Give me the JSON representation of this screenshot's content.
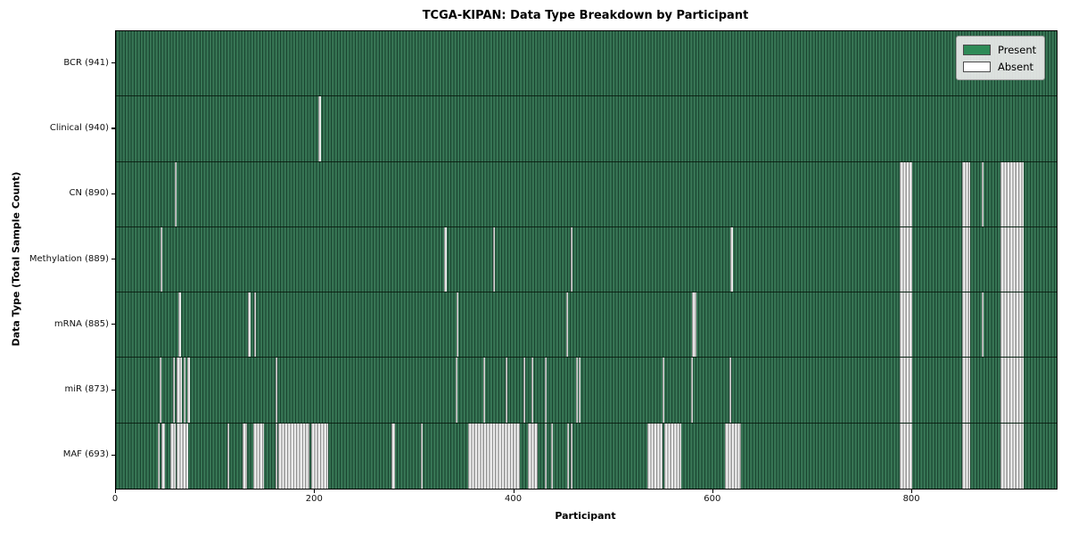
{
  "title": "TCGA-KIPAN: Data Type Breakdown by Participant",
  "chart_data": {
    "type": "heatmap",
    "title": "TCGA-KIPAN: Data Type Breakdown by Participant",
    "xlabel": "Participant",
    "ylabel": "Data Type (Total Sample Count)",
    "x_ticks": [
      0,
      200,
      400,
      600,
      800
    ],
    "x_max": 945,
    "grid": false,
    "legend_position": "upper right",
    "legend": [
      {
        "label": "Present",
        "color": "#2e8b57"
      },
      {
        "label": "Absent",
        "color": "#ffffff"
      }
    ],
    "present_color": "#2e8b57",
    "absent_color": "#ffffff",
    "rows": [
      {
        "label": "BCR (941)",
        "data_type": "BCR",
        "total_samples": 941,
        "absent_ranges": []
      },
      {
        "label": "Clinical (940)",
        "data_type": "Clinical",
        "total_samples": 940,
        "absent_ranges": [
          [
            203,
            206
          ]
        ]
      },
      {
        "label": "CN (890)",
        "data_type": "CN",
        "total_samples": 890,
        "absent_ranges": [
          [
            59,
            61
          ],
          [
            787,
            800
          ],
          [
            850,
            858
          ],
          [
            870,
            872
          ],
          [
            889,
            912
          ]
        ]
      },
      {
        "label": "Methylation (889)",
        "data_type": "Methylation",
        "total_samples": 889,
        "absent_ranges": [
          [
            45,
            47
          ],
          [
            330,
            332
          ],
          [
            379,
            381
          ],
          [
            457,
            459
          ],
          [
            617,
            620
          ],
          [
            787,
            800
          ],
          [
            850,
            858
          ],
          [
            889,
            912
          ]
        ]
      },
      {
        "label": "mRNA (885)",
        "data_type": "mRNA",
        "total_samples": 885,
        "absent_ranges": [
          [
            63,
            65
          ],
          [
            133,
            135
          ],
          [
            139,
            141
          ],
          [
            342,
            344
          ],
          [
            452,
            454
          ],
          [
            579,
            583
          ],
          [
            787,
            800
          ],
          [
            850,
            858
          ],
          [
            870,
            872
          ],
          [
            889,
            912
          ]
        ]
      },
      {
        "label": "miR (873)",
        "data_type": "miR",
        "total_samples": 873,
        "absent_ranges": [
          [
            44,
            46
          ],
          [
            57,
            59
          ],
          [
            61,
            66
          ],
          [
            68,
            70
          ],
          [
            72,
            74
          ],
          [
            160,
            162
          ],
          [
            341,
            343
          ],
          [
            369,
            371
          ],
          [
            391,
            393
          ],
          [
            409,
            411
          ],
          [
            417,
            419
          ],
          [
            431,
            433
          ],
          [
            462,
            464
          ],
          [
            465,
            467
          ],
          [
            549,
            551
          ],
          [
            578,
            580
          ],
          [
            616,
            618
          ],
          [
            787,
            800
          ],
          [
            850,
            858
          ],
          [
            889,
            912
          ]
        ]
      },
      {
        "label": "MAF (693)",
        "data_type": "MAF",
        "total_samples": 693,
        "absent_ranges": [
          [
            42,
            44
          ],
          [
            46,
            49
          ],
          [
            55,
            60
          ],
          [
            61,
            73
          ],
          [
            112,
            114
          ],
          [
            127,
            132
          ],
          [
            138,
            149
          ],
          [
            160,
            162
          ],
          [
            163,
            194
          ],
          [
            196,
            213
          ],
          [
            277,
            280
          ],
          [
            306,
            308
          ],
          [
            354,
            406
          ],
          [
            414,
            424
          ],
          [
            431,
            433
          ],
          [
            437,
            439
          ],
          [
            453,
            455
          ],
          [
            457,
            459
          ],
          [
            534,
            549
          ],
          [
            551,
            568
          ],
          [
            612,
            628
          ],
          [
            787,
            800
          ],
          [
            850,
            858
          ],
          [
            889,
            912
          ]
        ]
      }
    ]
  }
}
